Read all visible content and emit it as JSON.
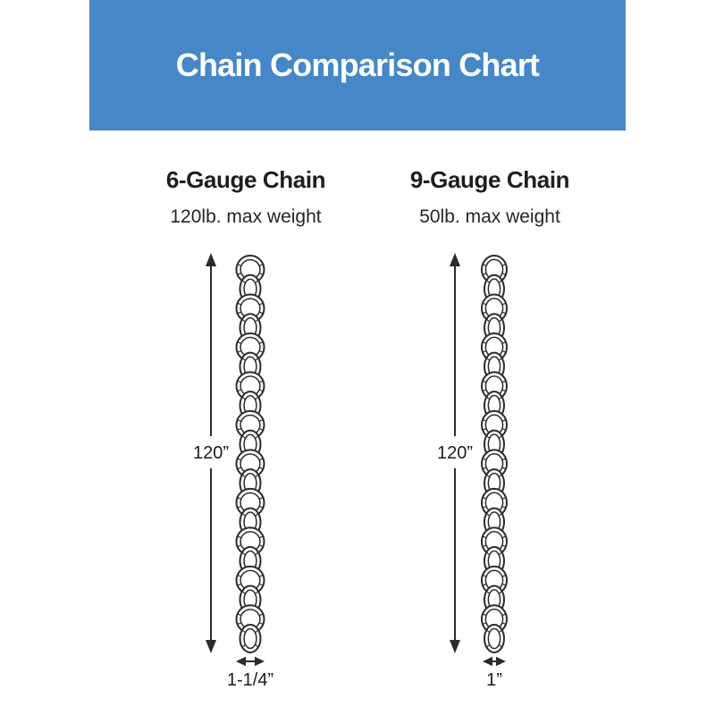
{
  "title": "Chain Comparison Chart",
  "colors": {
    "banner_blue": "#4587c7",
    "text_dark": "#1e1e1e",
    "line_dark": "#2b2b2b"
  },
  "columns": [
    {
      "name": "6-Gauge Chain",
      "max_weight": "120lb. max weight",
      "length_label": "120”",
      "width_label": "1-1/4”"
    },
    {
      "name": "9-Gauge Chain",
      "max_weight": "50lb. max weight",
      "length_label": "120”",
      "width_label": "1”"
    }
  ]
}
